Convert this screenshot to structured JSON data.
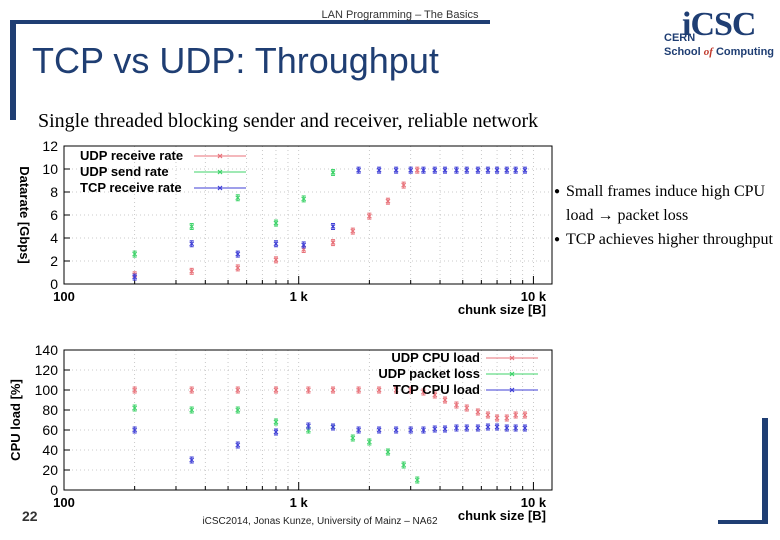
{
  "header": "LAN Programming – The Basics",
  "title": "TCP vs UDP: Throughput",
  "logo": {
    "brand": "iCSC",
    "line1": "CERN",
    "line2a": "School",
    "line2b": "of",
    "line2c": "Computing"
  },
  "subtitle": "Single threaded blocking sender and receiver, reliable network",
  "bullets": [
    "Small frames induce high CPU load → packet loss",
    "TCP achieves higher throughput"
  ],
  "footer": "iCSC2014, Jonas Kunze, University of Mainz – NA62",
  "page_number": "22",
  "colors": {
    "red": "#e8727a",
    "green": "#3fd36a",
    "blue": "#3f3fd6",
    "accent": "#1f3e73"
  },
  "chart_data": [
    {
      "type": "scatter",
      "xscale": "log",
      "xlim": [
        100,
        12000
      ],
      "ylim": [
        0,
        12
      ],
      "ylabel": "Datarate [Gbps]",
      "xlabel": "chunk size [B]",
      "xticks": [
        100,
        1000,
        10000
      ],
      "xtick_labels": [
        "100",
        "1 k",
        "10 k"
      ],
      "yticks": [
        0,
        2,
        4,
        6,
        8,
        10,
        12
      ],
      "grid": true,
      "legend": "top-left",
      "series": [
        {
          "name": "UDP receive rate",
          "color": "#e8727a",
          "x": [
            200,
            350,
            550,
            800,
            1050,
            1400,
            1700,
            2000,
            2400,
            2800,
            3200
          ],
          "y": [
            0.8,
            1.1,
            1.4,
            2.1,
            3.0,
            3.6,
            4.6,
            5.9,
            7.2,
            8.6,
            9.9
          ]
        },
        {
          "name": "UDP send rate",
          "color": "#3fd36a",
          "x": [
            200,
            350,
            550,
            800,
            1050,
            1400
          ],
          "y": [
            2.6,
            5.0,
            7.5,
            5.3,
            7.4,
            9.7
          ]
        },
        {
          "name": "TCP receive rate",
          "color": "#3f3fd6",
          "x": [
            200,
            350,
            550,
            800,
            1050,
            1400,
            1800,
            2200,
            2600,
            3000,
            3400,
            3800,
            4200,
            4700,
            5200,
            5800,
            6400,
            7000,
            7700,
            8400,
            9200
          ],
          "y": [
            0.6,
            3.5,
            2.6,
            3.5,
            3.4,
            5.0,
            9.9,
            9.9,
            9.9,
            9.9,
            9.9,
            9.9,
            9.9,
            9.9,
            9.9,
            9.9,
            9.9,
            9.9,
            9.9,
            9.9,
            9.9
          ]
        }
      ]
    },
    {
      "type": "scatter",
      "xscale": "log",
      "xlim": [
        100,
        12000
      ],
      "ylim": [
        0,
        140
      ],
      "ylabel": "CPU load [%]",
      "xlabel": "chunk size [B]",
      "xticks": [
        100,
        1000,
        10000
      ],
      "xtick_labels": [
        "100",
        "1 k",
        "10 k"
      ],
      "yticks": [
        0,
        20,
        40,
        60,
        80,
        100,
        120,
        140
      ],
      "grid": true,
      "legend": "top-right",
      "series": [
        {
          "name": "UDP CPU load",
          "color": "#e8727a",
          "x": [
            200,
            350,
            550,
            800,
            1100,
            1400,
            1800,
            2200,
            2600,
            3000,
            3400,
            3800,
            4200,
            4700,
            5200,
            5800,
            6400,
            7000,
            7700,
            8400,
            9200
          ],
          "y": [
            100,
            100,
            100,
            100,
            100,
            100,
            100,
            100,
            100,
            100,
            98,
            95,
            90,
            85,
            82,
            78,
            75,
            72,
            72,
            75,
            75
          ]
        },
        {
          "name": "UDP packet loss",
          "color": "#3fd36a",
          "x": [
            200,
            350,
            550,
            800,
            1100,
            1400,
            1700,
            2000,
            2400,
            2800,
            3200
          ],
          "y": [
            82,
            80,
            80,
            68,
            60,
            63,
            52,
            48,
            38,
            25,
            10
          ]
        },
        {
          "name": "TCP CPU load",
          "color": "#3f3fd6",
          "x": [
            200,
            350,
            550,
            800,
            1100,
            1400,
            1800,
            2200,
            2600,
            3000,
            3400,
            3800,
            4200,
            4700,
            5200,
            5800,
            6400,
            7000,
            7700,
            8400,
            9200
          ],
          "y": [
            60,
            30,
            45,
            58,
            64,
            63,
            60,
            60,
            60,
            60,
            60,
            61,
            61,
            62,
            62,
            62,
            63,
            63,
            62,
            62,
            62
          ]
        }
      ]
    }
  ]
}
